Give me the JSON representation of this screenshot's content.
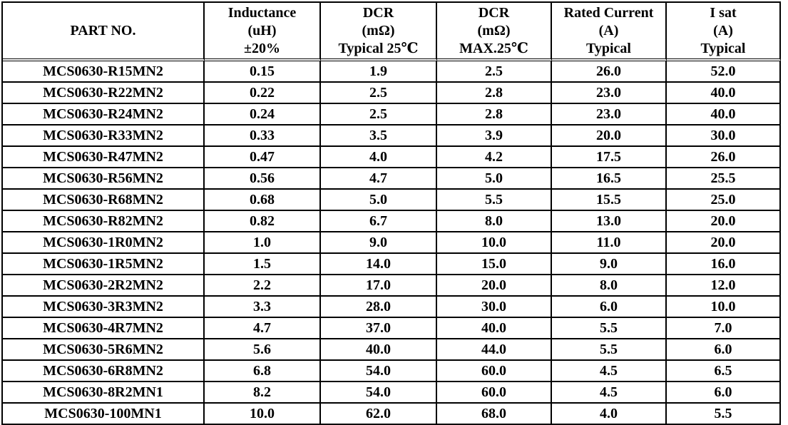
{
  "table": {
    "headers": [
      {
        "key": "part_no",
        "lines": [
          "PART NO."
        ]
      },
      {
        "key": "inductance",
        "lines": [
          "Inductance",
          "(uH)",
          "±20%"
        ]
      },
      {
        "key": "dcr_typ",
        "lines": [
          "DCR",
          "(mΩ)",
          "Typical 25℃"
        ]
      },
      {
        "key": "dcr_max",
        "lines": [
          "DCR",
          "(mΩ)",
          "MAX.25℃"
        ]
      },
      {
        "key": "rated_current",
        "lines": [
          "Rated Current",
          "(A)",
          "Typical"
        ]
      },
      {
        "key": "isat",
        "lines": [
          "I sat",
          "(A)",
          "Typical"
        ]
      }
    ],
    "rows": [
      [
        "MCS0630-R15MN2",
        "0.15",
        "1.9",
        "2.5",
        "26.0",
        "52.0"
      ],
      [
        "MCS0630-R22MN2",
        "0.22",
        "2.5",
        "2.8",
        "23.0",
        "40.0"
      ],
      [
        "MCS0630-R24MN2",
        "0.24",
        "2.5",
        "2.8",
        "23.0",
        "40.0"
      ],
      [
        "MCS0630-R33MN2",
        "0.33",
        "3.5",
        "3.9",
        "20.0",
        "30.0"
      ],
      [
        "MCS0630-R47MN2",
        "0.47",
        "4.0",
        "4.2",
        "17.5",
        "26.0"
      ],
      [
        "MCS0630-R56MN2",
        "0.56",
        "4.7",
        "5.0",
        "16.5",
        "25.5"
      ],
      [
        "MCS0630-R68MN2",
        "0.68",
        "5.0",
        "5.5",
        "15.5",
        "25.0"
      ],
      [
        "MCS0630-R82MN2",
        "0.82",
        "6.7",
        "8.0",
        "13.0",
        "20.0"
      ],
      [
        "MCS0630-1R0MN2",
        "1.0",
        "9.0",
        "10.0",
        "11.0",
        "20.0"
      ],
      [
        "MCS0630-1R5MN2",
        "1.5",
        "14.0",
        "15.0",
        "9.0",
        "16.0"
      ],
      [
        "MCS0630-2R2MN2",
        "2.2",
        "17.0",
        "20.0",
        "8.0",
        "12.0"
      ],
      [
        "MCS0630-3R3MN2",
        "3.3",
        "28.0",
        "30.0",
        "6.0",
        "10.0"
      ],
      [
        "MCS0630-4R7MN2",
        "4.7",
        "37.0",
        "40.0",
        "5.5",
        "7.0"
      ],
      [
        "MCS0630-5R6MN2",
        "5.6",
        "40.0",
        "44.0",
        "5.5",
        "6.0"
      ],
      [
        "MCS0630-6R8MN2",
        "6.8",
        "54.0",
        "60.0",
        "4.5",
        "6.5"
      ],
      [
        "MCS0630-8R2MN1",
        "8.2",
        "54.0",
        "60.0",
        "4.5",
        "6.0"
      ],
      [
        "MCS0630-100MN1",
        "10.0",
        "62.0",
        "68.0",
        "4.0",
        "5.5"
      ]
    ]
  }
}
